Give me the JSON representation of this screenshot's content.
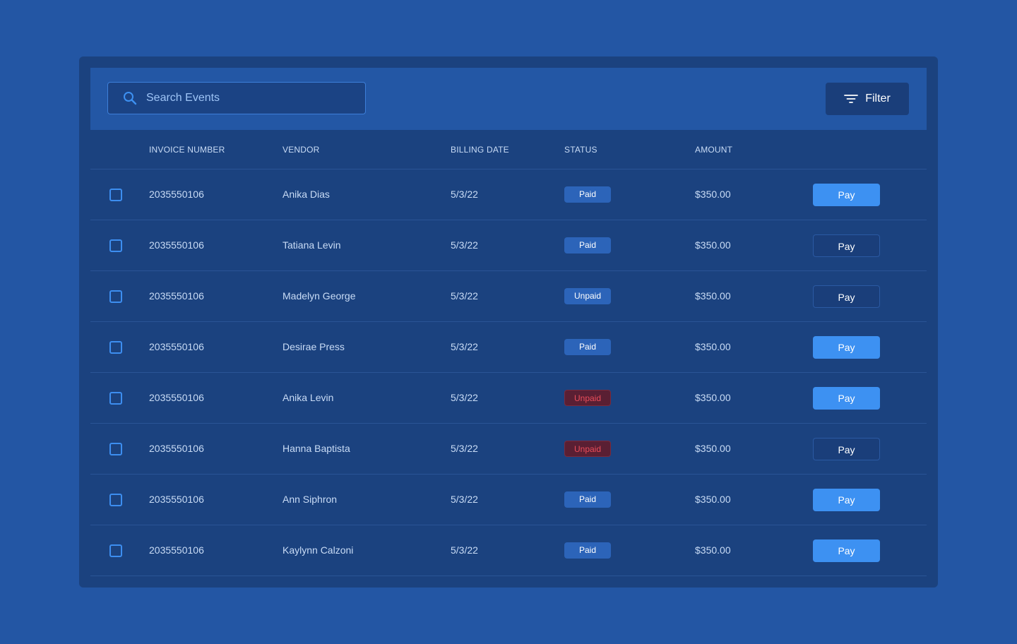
{
  "search": {
    "placeholder": "Search Events"
  },
  "toolbar": {
    "filter_label": "Filter"
  },
  "table": {
    "columns": [
      "INVOICE NUMBER",
      "VENDOR",
      "BILLING DATE",
      "STATUS",
      "AMOUNT"
    ],
    "rows": [
      {
        "invoice": "2035550106",
        "vendor": "Anika Dias",
        "date": "5/3/22",
        "status": "Paid",
        "status_style": "paid",
        "amount": "$350.00",
        "action": "Pay",
        "action_style": "primary"
      },
      {
        "invoice": "2035550106",
        "vendor": "Tatiana Levin",
        "date": "5/3/22",
        "status": "Paid",
        "status_style": "paid",
        "amount": "$350.00",
        "action": "Pay",
        "action_style": "outline"
      },
      {
        "invoice": "2035550106",
        "vendor": "Madelyn George",
        "date": "5/3/22",
        "status": "Unpaid",
        "status_style": "unpaid-neutral",
        "amount": "$350.00",
        "action": "Pay",
        "action_style": "outline"
      },
      {
        "invoice": "2035550106",
        "vendor": "Desirae Press",
        "date": "5/3/22",
        "status": "Paid",
        "status_style": "paid",
        "amount": "$350.00",
        "action": "Pay",
        "action_style": "primary"
      },
      {
        "invoice": "2035550106",
        "vendor": "Anika Levin",
        "date": "5/3/22",
        "status": "Unpaid",
        "status_style": "unpaid-alert",
        "amount": "$350.00",
        "action": "Pay",
        "action_style": "primary"
      },
      {
        "invoice": "2035550106",
        "vendor": "Hanna Baptista",
        "date": "5/3/22",
        "status": "Unpaid",
        "status_style": "unpaid-alert",
        "amount": "$350.00",
        "action": "Pay",
        "action_style": "outline"
      },
      {
        "invoice": "2035550106",
        "vendor": "Ann Siphron",
        "date": "5/3/22",
        "status": "Paid",
        "status_style": "paid",
        "amount": "$350.00",
        "action": "Pay",
        "action_style": "primary"
      },
      {
        "invoice": "2035550106",
        "vendor": "Kaylynn Calzoni",
        "date": "5/3/22",
        "status": "Paid",
        "status_style": "paid",
        "amount": "$350.00",
        "action": "Pay",
        "action_style": "primary"
      }
    ]
  },
  "colors": {
    "background": "#2356a4",
    "card": "#1b427f",
    "accent": "#3d91f2",
    "alert": "#ea4d5a"
  },
  "icons": {
    "search": "search-icon",
    "filter": "filter-icon"
  }
}
